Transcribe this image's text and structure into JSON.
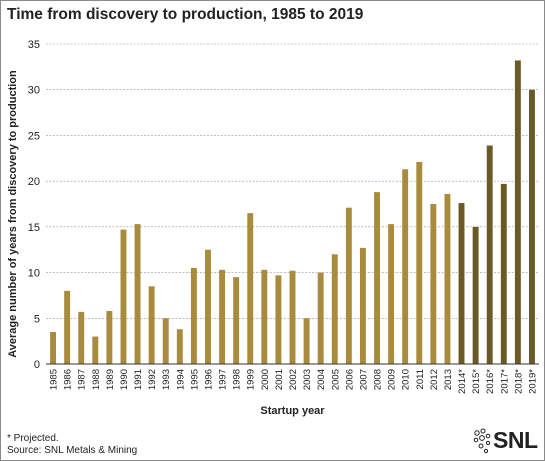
{
  "colors": {
    "actual": "#a98b3e",
    "projected": "#6b5a26",
    "grid": "#9a9a9a",
    "axis": "#333333",
    "logo": "#222222"
  },
  "logo": {
    "text": "SNL",
    "icon": "snl-dots-logo-icon"
  },
  "footnote": {
    "line1": "* Projected.",
    "line2": "Source: SNL Metals & Mining"
  },
  "chart_data": {
    "type": "bar",
    "title": "Time from discovery to production, 1985 to 2019",
    "xlabel": "Startup year",
    "ylabel": "Average number of years from discovery to production",
    "ylim": [
      0,
      35
    ],
    "yticks": [
      0,
      5,
      10,
      15,
      20,
      25,
      30,
      35
    ],
    "grid": true,
    "legend": "none",
    "categories": [
      "1985",
      "1986",
      "1987",
      "1988",
      "1989",
      "1990",
      "1991",
      "1992",
      "1993",
      "1994",
      "1995",
      "1996",
      "1997",
      "1998",
      "1999",
      "2000",
      "2001",
      "2002",
      "2003",
      "2004",
      "2005",
      "2006",
      "2007",
      "2008",
      "2009",
      "2010",
      "2011",
      "2012",
      "2013",
      "2014*",
      "2015*",
      "2016*",
      "2017*",
      "2018*",
      "2019*"
    ],
    "values": [
      3.5,
      8.0,
      5.7,
      3.0,
      5.8,
      14.7,
      15.3,
      8.5,
      5.0,
      3.8,
      10.5,
      12.5,
      10.3,
      9.5,
      16.5,
      10.3,
      9.7,
      10.2,
      5.0,
      10.0,
      12.0,
      17.1,
      12.7,
      18.8,
      15.3,
      21.3,
      22.1,
      17.5,
      18.6,
      17.6,
      15.0,
      23.9,
      19.7,
      33.2,
      30.0
    ],
    "projected": [
      false,
      false,
      false,
      false,
      false,
      false,
      false,
      false,
      false,
      false,
      false,
      false,
      false,
      false,
      false,
      false,
      false,
      false,
      false,
      false,
      false,
      false,
      false,
      false,
      false,
      false,
      false,
      false,
      false,
      true,
      true,
      true,
      true,
      true,
      true
    ]
  }
}
